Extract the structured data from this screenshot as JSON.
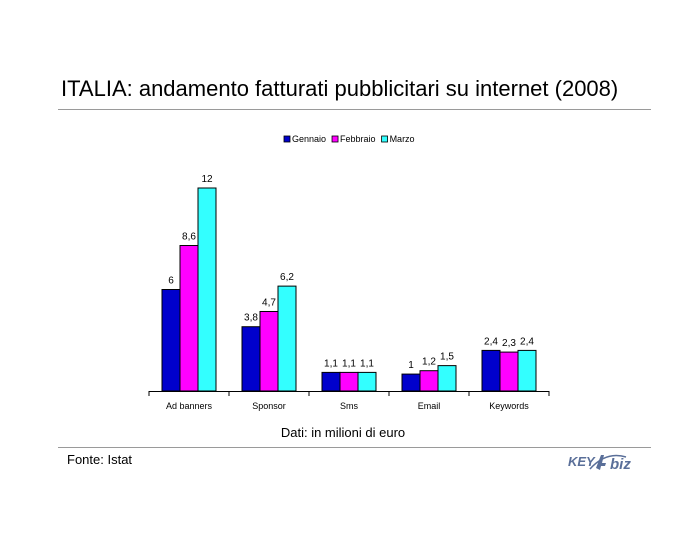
{
  "header": {
    "title": "ITALIA: andamento fatturati pubblicitari su internet (2008)"
  },
  "chart_data": {
    "type": "bar",
    "categories": [
      "Ad banners",
      "Sponsor",
      "Sms",
      "Email",
      "Keywords"
    ],
    "series": [
      {
        "name": "Gennaio",
        "color": "#0000cc",
        "values": [
          6,
          3.8,
          1.1,
          1,
          2.4
        ],
        "labels": [
          "6",
          "3,8",
          "1,1",
          "1",
          "2,4"
        ]
      },
      {
        "name": "Febbraio",
        "color": "#ff00ff",
        "values": [
          8.6,
          4.7,
          1.1,
          1.2,
          2.3
        ],
        "labels": [
          "8,6",
          "4,7",
          "1,1",
          "1,2",
          "2,3"
        ]
      },
      {
        "name": "Marzo",
        "color": "#33ffff",
        "values": [
          12,
          6.2,
          1.1,
          1.5,
          2.4
        ],
        "labels": [
          "12",
          "6,2",
          "1,1",
          "1,5",
          "2,4"
        ]
      }
    ],
    "ylim": [
      0,
      12
    ],
    "legend_position": "top",
    "grid": false
  },
  "footer": {
    "note": "Dati: in milioni di euro",
    "source": "Fonte: Istat",
    "logo_text": "KEY4biz"
  }
}
